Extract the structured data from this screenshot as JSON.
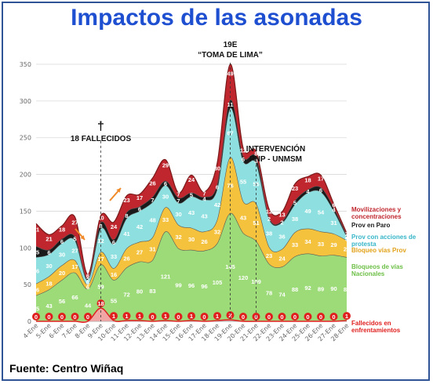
{
  "title": "Impactos de las asonadas",
  "source": "Fuente: Centro Wiñaq",
  "chart_data": {
    "type": "area",
    "stacked": true,
    "categories": [
      "4-Ene",
      "5-Ene",
      "6-Ene",
      "7-Ene",
      "8-Ene",
      "9-Ene",
      "10-Ene",
      "11-Ene",
      "12-Ene",
      "13-Ene",
      "14-Ene",
      "15-Ene",
      "16-Ene",
      "17-Ene",
      "18-Ene",
      "19-Ene",
      "20-Ene",
      "21-Ene",
      "22-Ene",
      "23-Ene",
      "24-Ene",
      "25-Ene",
      "26-Ene",
      "27-Ene",
      "28-Ene"
    ],
    "ylim": [
      0,
      350
    ],
    "yticks": [
      0,
      50,
      100,
      150,
      200,
      250,
      300,
      350
    ],
    "grid": true,
    "series": [
      {
        "name": "Fallecidos en enfrentamientos",
        "color": "#e0201f",
        "values": [
          0,
          0,
          0,
          0,
          0,
          18,
          1,
          1,
          1,
          0,
          1,
          0,
          1,
          0,
          1,
          2,
          0,
          0,
          0,
          0,
          0,
          0,
          0,
          0,
          1
        ]
      },
      {
        "name": "Bloqueos de vías Nacionales",
        "color": "#9ddb78",
        "values": [
          35,
          43,
          56,
          66,
          44,
          59,
          55,
          72,
          80,
          83,
          121,
          99,
          96,
          96,
          105,
          145,
          120,
          109,
          78,
          74,
          88,
          92,
          89,
          90,
          86
        ]
      },
      {
        "name": "Bloqueo vías Prov",
        "color": "#f5c23e",
        "values": [
          16,
          18,
          20,
          17,
          6,
          17,
          16,
          26,
          27,
          31,
          33,
          32,
          30,
          26,
          32,
          76,
          43,
          51,
          23,
          24,
          33,
          34,
          33,
          29,
          23
        ]
      },
      {
        "name": "Prov con acciones de protesta",
        "color": "#8ee0e0",
        "values": [
          36,
          30,
          30,
          27,
          6,
          32,
          33,
          41,
          42,
          48,
          30,
          30,
          43,
          43,
          42,
          67,
          55,
          55,
          38,
          36,
          38,
          49,
          54,
          31,
          5
        ]
      },
      {
        "name": "Prov en Paro",
        "color": "#1a1a1a",
        "values": [
          15,
          6,
          6,
          5,
          2,
          8,
          6,
          8,
          6,
          7,
          6,
          7,
          5,
          4,
          6,
          11,
          6,
          8,
          2,
          2,
          5,
          4,
          6,
          4,
          2
        ]
      },
      {
        "name": "Movilizaciones y concentraciones",
        "color": "#c0262e",
        "values": [
          31,
          21,
          18,
          27,
          6,
          10,
          24,
          23,
          17,
          26,
          29,
          7,
          24,
          7,
          30,
          49,
          12,
          8,
          12,
          13,
          23,
          18,
          17,
          6,
          3
        ]
      }
    ],
    "annotations": [
      {
        "category": "9-Ene",
        "text": "18 FALLECIDOS",
        "symbol": "†"
      },
      {
        "category": "19-Ene",
        "text": "19E",
        "text2": "“TOMA DE LIMA”"
      },
      {
        "category": "21-Ene",
        "text": "INTERVENCIÓN",
        "text2": "PNP - UNMSM"
      }
    ]
  }
}
